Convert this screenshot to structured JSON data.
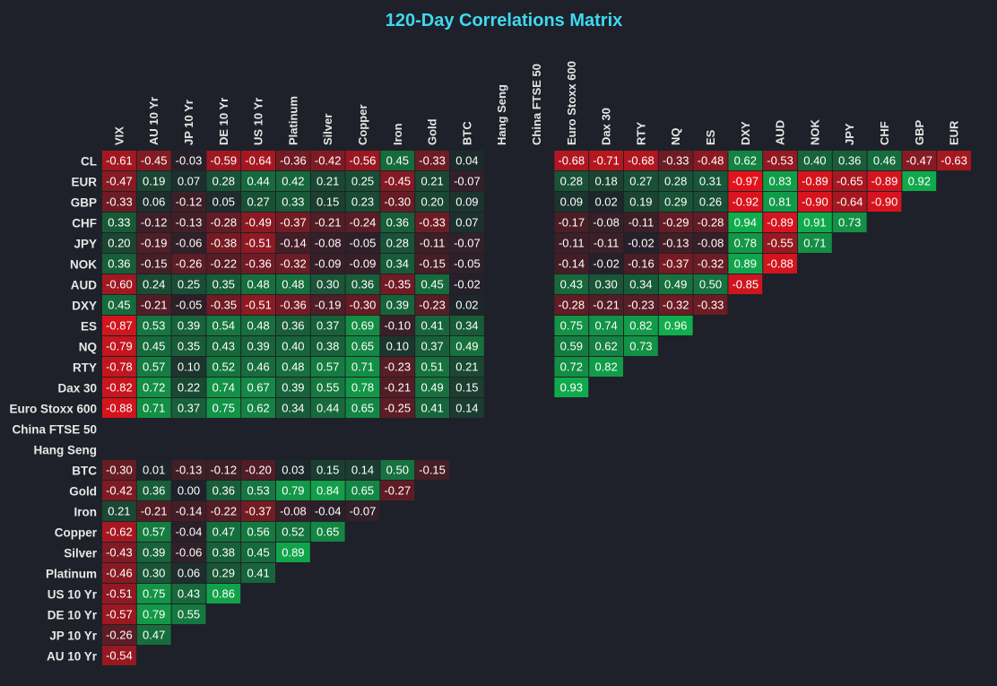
{
  "chart_data": {
    "type": "heatmap",
    "title": "120-Day Correlations Matrix",
    "columns": [
      "VIX",
      "AU 10 Yr",
      "JP 10 Yr",
      "DE 10 Yr",
      "US 10 Yr",
      "Platinum",
      "Silver",
      "Copper",
      "Iron",
      "Gold",
      "BTC",
      "Hang Seng",
      "China FTSE 50",
      "Euro Stoxx 600",
      "Dax 30",
      "RTY",
      "NQ",
      "ES",
      "DXY",
      "AUD",
      "NOK",
      "JPY",
      "CHF",
      "GBP",
      "EUR"
    ],
    "rows": [
      "CL",
      "EUR",
      "GBP",
      "CHF",
      "JPY",
      "NOK",
      "AUD",
      "DXY",
      "ES",
      "NQ",
      "RTY",
      "Dax 30",
      "Euro Stoxx 600",
      "China FTSE 50",
      "Hang Seng",
      "BTC",
      "Gold",
      "Iron",
      "Copper",
      "Silver",
      "Platinum",
      "US 10 Yr",
      "DE 10 Yr",
      "JP 10 Yr",
      "AU 10 Yr"
    ],
    "values": [
      [
        -0.61,
        -0.45,
        -0.03,
        -0.59,
        -0.64,
        -0.36,
        -0.42,
        -0.56,
        0.45,
        -0.33,
        0.04,
        null,
        null,
        -0.68,
        -0.71,
        -0.68,
        -0.33,
        -0.48,
        0.62,
        -0.53,
        0.4,
        0.36,
        0.46,
        -0.47,
        -0.63
      ],
      [
        -0.47,
        0.19,
        0.07,
        0.28,
        0.44,
        0.42,
        0.21,
        0.25,
        -0.45,
        0.21,
        -0.07,
        null,
        null,
        0.28,
        0.18,
        0.27,
        0.28,
        0.31,
        -0.97,
        0.83,
        -0.89,
        -0.65,
        -0.89,
        0.92,
        null
      ],
      [
        -0.33,
        0.06,
        -0.12,
        0.05,
        0.27,
        0.33,
        0.15,
        0.23,
        -0.3,
        0.2,
        0.09,
        null,
        null,
        0.09,
        0.02,
        0.19,
        0.29,
        0.26,
        -0.92,
        0.81,
        -0.9,
        -0.64,
        -0.9,
        null,
        null
      ],
      [
        0.33,
        -0.12,
        -0.13,
        -0.28,
        -0.49,
        -0.37,
        -0.21,
        -0.24,
        0.36,
        -0.33,
        0.07,
        null,
        null,
        -0.17,
        -0.08,
        -0.11,
        -0.29,
        -0.28,
        0.94,
        -0.89,
        0.91,
        0.73,
        null,
        null,
        null
      ],
      [
        0.2,
        -0.19,
        -0.06,
        -0.38,
        -0.51,
        -0.14,
        -0.08,
        -0.05,
        0.28,
        -0.11,
        -0.07,
        null,
        null,
        -0.11,
        -0.11,
        -0.02,
        -0.13,
        -0.08,
        0.78,
        -0.55,
        0.71,
        null,
        null,
        null,
        null
      ],
      [
        0.36,
        -0.15,
        -0.26,
        -0.22,
        -0.36,
        -0.32,
        -0.09,
        -0.09,
        0.34,
        -0.15,
        -0.05,
        null,
        null,
        -0.14,
        -0.02,
        -0.16,
        -0.37,
        -0.32,
        0.89,
        -0.88,
        null,
        null,
        null,
        null,
        null
      ],
      [
        -0.6,
        0.24,
        0.25,
        0.35,
        0.48,
        0.48,
        0.3,
        0.36,
        -0.35,
        0.45,
        -0.02,
        null,
        null,
        0.43,
        0.3,
        0.34,
        0.49,
        0.5,
        -0.85,
        null,
        null,
        null,
        null,
        null,
        null
      ],
      [
        0.45,
        -0.21,
        -0.05,
        -0.35,
        -0.51,
        -0.36,
        -0.19,
        -0.3,
        0.39,
        -0.23,
        0.02,
        null,
        null,
        -0.28,
        -0.21,
        -0.23,
        -0.32,
        -0.33,
        null,
        null,
        null,
        null,
        null,
        null,
        null
      ],
      [
        -0.87,
        0.53,
        0.39,
        0.54,
        0.48,
        0.36,
        0.37,
        0.69,
        -0.1,
        0.41,
        0.34,
        null,
        null,
        0.75,
        0.74,
        0.82,
        0.96,
        null,
        null,
        null,
        null,
        null,
        null,
        null,
        null
      ],
      [
        -0.79,
        0.45,
        0.35,
        0.43,
        0.39,
        0.4,
        0.38,
        0.65,
        0.1,
        0.37,
        0.49,
        null,
        null,
        0.59,
        0.62,
        0.73,
        null,
        null,
        null,
        null,
        null,
        null,
        null,
        null,
        null
      ],
      [
        -0.78,
        0.57,
        0.1,
        0.52,
        0.46,
        0.48,
        0.57,
        0.71,
        -0.23,
        0.51,
        0.21,
        null,
        null,
        0.72,
        0.82,
        null,
        null,
        null,
        null,
        null,
        null,
        null,
        null,
        null,
        null
      ],
      [
        -0.82,
        0.72,
        0.22,
        0.74,
        0.67,
        0.39,
        0.55,
        0.78,
        -0.21,
        0.49,
        0.15,
        null,
        null,
        0.93,
        null,
        null,
        null,
        null,
        null,
        null,
        null,
        null,
        null,
        null,
        null
      ],
      [
        -0.88,
        0.71,
        0.37,
        0.75,
        0.62,
        0.34,
        0.44,
        0.65,
        -0.25,
        0.41,
        0.14,
        null,
        null,
        null,
        null,
        null,
        null,
        null,
        null,
        null,
        null,
        null,
        null,
        null,
        null
      ],
      [
        null,
        null,
        null,
        null,
        null,
        null,
        null,
        null,
        null,
        null,
        null,
        null,
        null,
        null,
        null,
        null,
        null,
        null,
        null,
        null,
        null,
        null,
        null,
        null,
        null
      ],
      [
        null,
        null,
        null,
        null,
        null,
        null,
        null,
        null,
        null,
        null,
        null,
        null,
        null,
        null,
        null,
        null,
        null,
        null,
        null,
        null,
        null,
        null,
        null,
        null,
        null
      ],
      [
        -0.3,
        0.01,
        -0.13,
        -0.12,
        -0.2,
        0.03,
        0.15,
        0.14,
        0.5,
        -0.15,
        null,
        null,
        null,
        null,
        null,
        null,
        null,
        null,
        null,
        null,
        null,
        null,
        null,
        null,
        null
      ],
      [
        -0.42,
        0.36,
        0.0,
        0.36,
        0.53,
        0.79,
        0.84,
        0.65,
        -0.27,
        null,
        null,
        null,
        null,
        null,
        null,
        null,
        null,
        null,
        null,
        null,
        null,
        null,
        null,
        null,
        null
      ],
      [
        0.21,
        -0.21,
        -0.14,
        -0.22,
        -0.37,
        -0.08,
        -0.04,
        -0.07,
        null,
        null,
        null,
        null,
        null,
        null,
        null,
        null,
        null,
        null,
        null,
        null,
        null,
        null,
        null,
        null,
        null
      ],
      [
        -0.62,
        0.57,
        -0.04,
        0.47,
        0.56,
        0.52,
        0.65,
        null,
        null,
        null,
        null,
        null,
        null,
        null,
        null,
        null,
        null,
        null,
        null,
        null,
        null,
        null,
        null,
        null,
        null
      ],
      [
        -0.43,
        0.39,
        -0.06,
        0.38,
        0.45,
        0.89,
        null,
        null,
        null,
        null,
        null,
        null,
        null,
        null,
        null,
        null,
        null,
        null,
        null,
        null,
        null,
        null,
        null,
        null,
        null
      ],
      [
        -0.46,
        0.3,
        0.06,
        0.29,
        0.41,
        null,
        null,
        null,
        null,
        null,
        null,
        null,
        null,
        null,
        null,
        null,
        null,
        null,
        null,
        null,
        null,
        null,
        null,
        null,
        null
      ],
      [
        -0.51,
        0.75,
        0.43,
        0.86,
        null,
        null,
        null,
        null,
        null,
        null,
        null,
        null,
        null,
        null,
        null,
        null,
        null,
        null,
        null,
        null,
        null,
        null,
        null,
        null,
        null
      ],
      [
        -0.57,
        0.79,
        0.55,
        null,
        null,
        null,
        null,
        null,
        null,
        null,
        null,
        null,
        null,
        null,
        null,
        null,
        null,
        null,
        null,
        null,
        null,
        null,
        null,
        null,
        null
      ],
      [
        -0.26,
        0.47,
        null,
        null,
        null,
        null,
        null,
        null,
        null,
        null,
        null,
        null,
        null,
        null,
        null,
        null,
        null,
        null,
        null,
        null,
        null,
        null,
        null,
        null,
        null
      ],
      [
        -0.54,
        null,
        null,
        null,
        null,
        null,
        null,
        null,
        null,
        null,
        null,
        null,
        null,
        null,
        null,
        null,
        null,
        null,
        null,
        null,
        null,
        null,
        null,
        null,
        null
      ]
    ],
    "color_scale": {
      "min": -1,
      "max": 1,
      "negative_color": "#e8131c",
      "positive_color": "#0fb34e",
      "neutral_color": "#1e2129"
    },
    "grid": false,
    "legend": "none"
  }
}
